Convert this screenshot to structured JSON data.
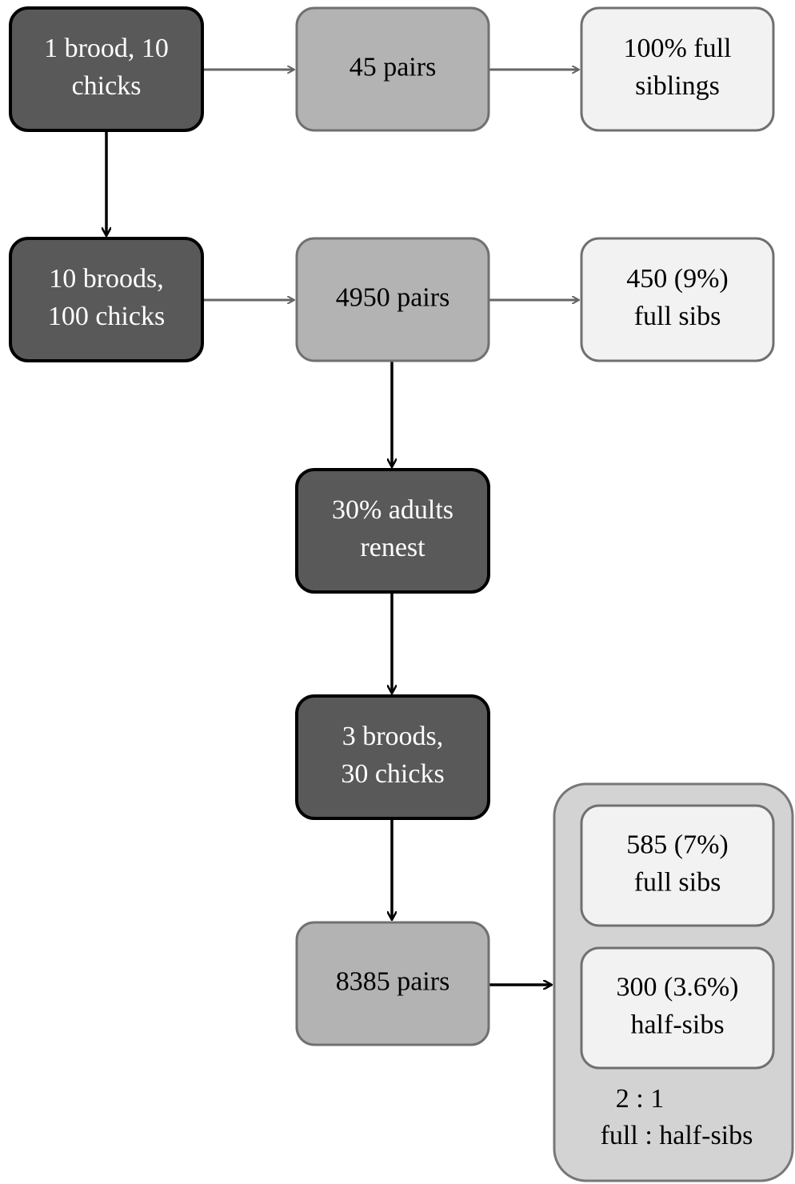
{
  "nodes": [
    {
      "lines": [
        "1 brood, 10",
        "chicks"
      ]
    },
    {
      "lines": [
        "45 pairs"
      ]
    },
    {
      "lines": [
        "100% full",
        "siblings"
      ]
    },
    {
      "lines": [
        "10 broods,",
        "100 chicks"
      ]
    },
    {
      "lines": [
        "4950 pairs"
      ]
    },
    {
      "lines": [
        "450 (9%)",
        "full sibs"
      ]
    },
    {
      "lines": [
        "30% adults",
        "renest"
      ]
    },
    {
      "lines": [
        "3 broods,",
        "30 chicks"
      ]
    },
    {
      "lines": [
        "8385 pairs"
      ]
    },
    {
      "lines": [
        "585 (7%)",
        "full sibs"
      ]
    },
    {
      "lines": [
        "300 (3.6%)",
        "half-sibs"
      ]
    }
  ],
  "ratio_note": {
    "lines": [
      "2 : 1",
      "full : half-sibs"
    ]
  }
}
